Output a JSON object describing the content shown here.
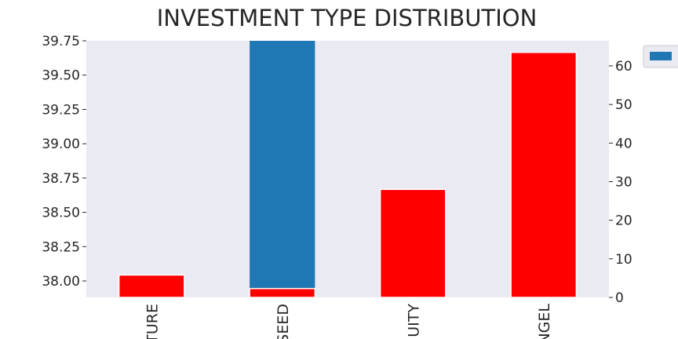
{
  "chart_data": {
    "type": "bar",
    "title": "INVESTMENT TYPE DISTRIBUTION",
    "categories": [
      "VENTURE",
      "SEED",
      "PRIVATE EQUITY",
      "ANGEL"
    ],
    "category_labels_visible": [
      "TURE",
      "SEED",
      "UITY",
      "NGEL"
    ],
    "left_axis": {
      "ylim": [
        37.88,
        39.75
      ],
      "ticks": [
        "38.00",
        "38.25",
        "38.50",
        "38.75",
        "39.00",
        "39.25",
        "39.50",
        "39.75"
      ],
      "series": [
        {
          "values": [
            null,
            39.75,
            null,
            null
          ],
          "color": "#1f77b4"
        }
      ]
    },
    "right_axis": {
      "ylim": [
        0,
        66.5
      ],
      "ticks": [
        "0",
        "10",
        "20",
        "30",
        "40",
        "50",
        "60"
      ],
      "series": [
        {
          "values": [
            5.8,
            2.3,
            28.0,
            63.5
          ],
          "color": "#ff0000"
        }
      ]
    },
    "grid": false,
    "legend": {
      "position": "top-right",
      "entries": [
        ""
      ],
      "color": "#1f77b4"
    },
    "background": "#eaeaf2"
  }
}
